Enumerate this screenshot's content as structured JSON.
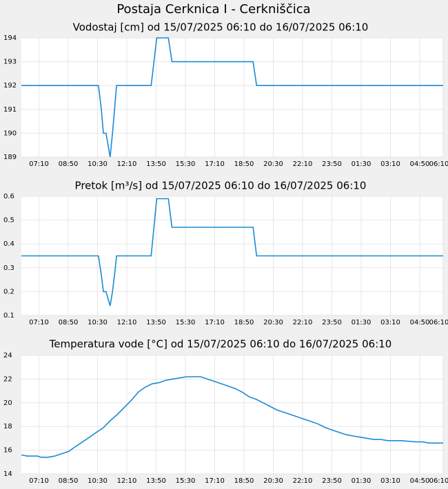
{
  "title": "Postaja Cerknica I - Cerkniščica",
  "chart_data": [
    {
      "type": "line",
      "title": "Vodostaj [cm] od 15/07/2025 06:10 do 16/07/2025 06:10",
      "color": "#1a8ad4",
      "grid": true,
      "x": [
        0,
        263,
        273,
        280,
        289,
        296,
        303,
        311,
        318,
        325,
        443,
        462,
        502,
        514,
        791,
        803,
        1440
      ],
      "values": [
        192,
        192,
        191,
        190,
        190,
        189.5,
        189,
        190,
        191,
        192,
        192,
        194,
        194,
        193,
        193,
        192,
        192
      ],
      "xlim": [
        0,
        1440
      ],
      "xticks": [
        {
          "value": 60,
          "label": "07:10"
        },
        {
          "value": 160,
          "label": "08:50"
        },
        {
          "value": 260,
          "label": "10:30"
        },
        {
          "value": 360,
          "label": "12:10"
        },
        {
          "value": 460,
          "label": "13:50"
        },
        {
          "value": 560,
          "label": "15:30"
        },
        {
          "value": 660,
          "label": "17:10"
        },
        {
          "value": 760,
          "label": "18:50"
        },
        {
          "value": 860,
          "label": "20:30"
        },
        {
          "value": 960,
          "label": "22:10"
        },
        {
          "value": 1060,
          "label": "23:50"
        },
        {
          "value": 1160,
          "label": "01:30"
        },
        {
          "value": 1260,
          "label": "03:10"
        },
        {
          "value": 1360,
          "label": "04:50"
        },
        {
          "value": 1440,
          "label": "06:10"
        }
      ],
      "ylim": [
        189,
        194
      ],
      "yticks": [
        189,
        190,
        191,
        192,
        193,
        194
      ]
    },
    {
      "type": "line",
      "title": "Pretok [m³/s] od 15/07/2025 06:10 do 16/07/2025 06:10",
      "color": "#1a8ad4",
      "grid": true,
      "x": [
        0,
        263,
        273,
        280,
        289,
        296,
        303,
        311,
        318,
        325,
        443,
        462,
        502,
        514,
        791,
        803,
        1440
      ],
      "values": [
        0.35,
        0.35,
        0.27,
        0.2,
        0.2,
        0.17,
        0.14,
        0.2,
        0.27,
        0.35,
        0.35,
        0.59,
        0.59,
        0.47,
        0.47,
        0.35,
        0.35
      ],
      "xlim": [
        0,
        1440
      ],
      "xticks": [
        {
          "value": 60,
          "label": "07:10"
        },
        {
          "value": 160,
          "label": "08:50"
        },
        {
          "value": 260,
          "label": "10:30"
        },
        {
          "value": 360,
          "label": "12:10"
        },
        {
          "value": 460,
          "label": "13:50"
        },
        {
          "value": 560,
          "label": "15:30"
        },
        {
          "value": 660,
          "label": "17:10"
        },
        {
          "value": 760,
          "label": "18:50"
        },
        {
          "value": 860,
          "label": "20:30"
        },
        {
          "value": 960,
          "label": "22:10"
        },
        {
          "value": 1060,
          "label": "23:50"
        },
        {
          "value": 1160,
          "label": "01:30"
        },
        {
          "value": 1260,
          "label": "03:10"
        },
        {
          "value": 1360,
          "label": "04:50"
        },
        {
          "value": 1440,
          "label": "06:10"
        }
      ],
      "ylim": [
        0.1,
        0.6
      ],
      "yticks": [
        0.1,
        0.2,
        0.3,
        0.4,
        0.5,
        0.6
      ]
    },
    {
      "type": "line",
      "title": "Temperatura vode [°C] od 15/07/2025 06:10 do 16/07/2025 06:10",
      "color": "#1a8ad4",
      "grid": true,
      "x": [
        0,
        20,
        55,
        67,
        90,
        114,
        138,
        162,
        185,
        209,
        233,
        256,
        280,
        304,
        327,
        351,
        375,
        399,
        422,
        446,
        470,
        493,
        517,
        541,
        564,
        588,
        612,
        635,
        659,
        683,
        707,
        730,
        754,
        778,
        801,
        825,
        849,
        872,
        896,
        920,
        943,
        967,
        991,
        1014,
        1038,
        1061,
        1085,
        1109,
        1132,
        1156,
        1180,
        1203,
        1227,
        1251,
        1298,
        1345,
        1369,
        1393,
        1440
      ],
      "values": [
        15.6,
        15.5,
        15.5,
        15.4,
        15.4,
        15.5,
        15.7,
        15.9,
        16.3,
        16.7,
        17.1,
        17.5,
        17.9,
        18.5,
        19.0,
        19.6,
        20.2,
        20.9,
        21.3,
        21.6,
        21.7,
        21.9,
        22.0,
        22.1,
        22.2,
        22.2,
        22.2,
        22.0,
        21.8,
        21.6,
        21.4,
        21.2,
        20.9,
        20.5,
        20.3,
        20.0,
        19.7,
        19.4,
        19.2,
        19.0,
        18.8,
        18.6,
        18.4,
        18.2,
        17.9,
        17.7,
        17.5,
        17.3,
        17.2,
        17.1,
        17.0,
        16.9,
        16.9,
        16.8,
        16.8,
        16.7,
        16.7,
        16.6,
        16.6
      ],
      "xlim": [
        0,
        1440
      ],
      "xticks": [
        {
          "value": 60,
          "label": "07:10"
        },
        {
          "value": 160,
          "label": "08:50"
        },
        {
          "value": 260,
          "label": "10:30"
        },
        {
          "value": 360,
          "label": "12:10"
        },
        {
          "value": 460,
          "label": "13:50"
        },
        {
          "value": 560,
          "label": "15:30"
        },
        {
          "value": 660,
          "label": "17:10"
        },
        {
          "value": 760,
          "label": "18:50"
        },
        {
          "value": 860,
          "label": "20:30"
        },
        {
          "value": 960,
          "label": "22:10"
        },
        {
          "value": 1060,
          "label": "23:50"
        },
        {
          "value": 1160,
          "label": "01:30"
        },
        {
          "value": 1260,
          "label": "03:10"
        },
        {
          "value": 1360,
          "label": "04:50"
        },
        {
          "value": 1440,
          "label": "06:10"
        }
      ],
      "ylim": [
        14,
        24
      ],
      "yticks": [
        14,
        16,
        18,
        20,
        22,
        24
      ]
    }
  ]
}
